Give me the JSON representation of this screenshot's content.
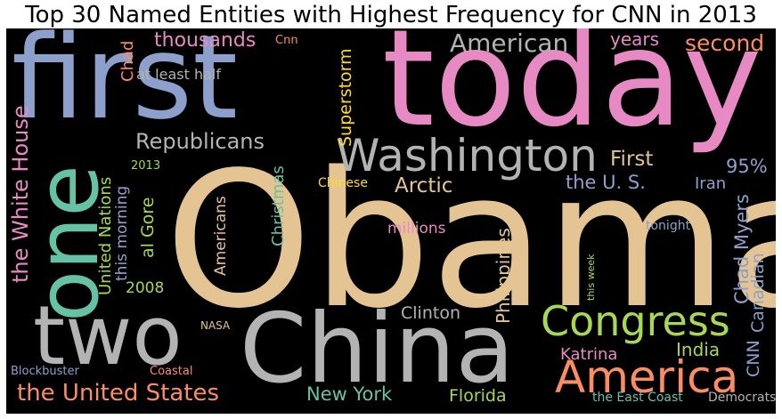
{
  "title": "Top 30 Named Entities with Highest Frequency for CNN in 2013",
  "colors": {
    "background": "#000000",
    "tan": "#e5c494",
    "pink": "#e78ac3",
    "blue": "#8da0cb",
    "teal": "#66c2a5",
    "gray": "#b3b3b3",
    "green": "#a6d854",
    "orange": "#fc8d62",
    "yellow": "#ffd92f"
  },
  "words": {
    "obama": "Obama",
    "today": "today",
    "first_big": "first",
    "one": "one",
    "two": "two",
    "china": "China",
    "washington": "Washington",
    "america": "America",
    "congress": "Congress",
    "american": "American",
    "republicans": "Republicans",
    "the_united_states": "the United States",
    "the_white_house": "the White House",
    "thousands": "thousands",
    "second": "second",
    "years": "years",
    "cnn_small": "Cnn",
    "chad": "Chad",
    "at_least_half": "at least half",
    "superstorm": "Superstorm",
    "first_small": "First",
    "arctic": "Arctic",
    "the_u_s": "the U. S.",
    "iran": "Iran",
    "pct_95": "95%",
    "chad_myers": "Chad Myers",
    "canadian": "Canadian",
    "cnn": "CNN",
    "united_nations": "United Nations",
    "this_morning": "this morning",
    "al_gore": "al Gore",
    "christmas": "Christmas",
    "chinese": "Chinese",
    "year_2013": "2013",
    "year_2008": "2008",
    "americans": "Americans",
    "millions": "millions",
    "philippines": "Philippines",
    "clinton": "Clinton",
    "tonight": "tonight",
    "this_week": "this week",
    "india": "India",
    "katrina": "Katrina",
    "new_york": "New York",
    "florida": "Florida",
    "the_east_coast": "the East Coast",
    "democrats": "Democrats",
    "nasa": "NASA",
    "blockbuster": "Blockbuster",
    "coastal": "Coastal"
  }
}
